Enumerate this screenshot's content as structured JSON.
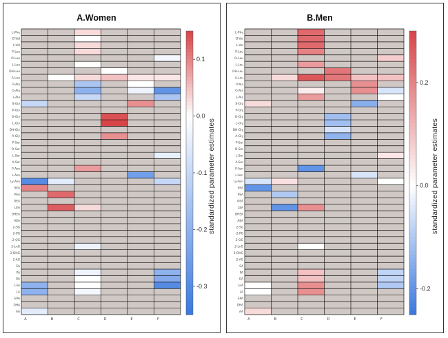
{
  "chart_data": [
    {
      "type": "heatmap",
      "title": "A.Women",
      "colorbar_label": "standardized parameter estimates",
      "color_range": [
        -0.35,
        0.15
      ],
      "colorbar_ticks": [
        {
          "value": 0.1,
          "label": "0.1"
        },
        {
          "value": 0.0,
          "label": "0.0"
        },
        {
          "value": -0.1,
          "label": "-0.1"
        },
        {
          "value": -0.2,
          "label": "-0.2"
        },
        {
          "value": -0.3,
          "label": "-0.3"
        }
      ],
      "colors": {
        "neg": "#3a78e0",
        "mid": "#ffffff",
        "pos": "#d84448",
        "empty": "#d0c8c4"
      },
      "columns": [
        "A",
        "B",
        "C",
        "D",
        "E",
        "F"
      ],
      "rows": [
        "L-Phe",
        "D-Val",
        "L-Val",
        "P-Leu",
        "O-Leu",
        "L-Leu",
        "DH-Leu",
        "A-Leu",
        "P-Ala",
        "O-Ala",
        "L-Ala",
        "S-Gly",
        "P-Gly",
        "O-Gly",
        "L-Gly",
        "DH-Gly",
        "A-Gly",
        "P-Ser",
        "O-Ser",
        "L-Ser",
        "A-Ser",
        "P-Asn",
        "L-Asn",
        "Ly-Asn",
        "SEA",
        "PEA",
        "OEA",
        "LEA",
        "DHEA",
        "AEA",
        "2-SG",
        "2-PG",
        "2-OG",
        "2-LnG",
        "2-DHG",
        "2-AG",
        "SA",
        "PA",
        "OA",
        "LnA",
        "LA",
        "EPA",
        "DHA",
        "AA"
      ],
      "values": [
        [
          null,
          null,
          0.03,
          null,
          null,
          null
        ],
        [
          null,
          null,
          0.0,
          null,
          null,
          null
        ],
        [
          null,
          null,
          0.03,
          null,
          null,
          null
        ],
        [
          null,
          null,
          0.03,
          null,
          null,
          null
        ],
        [
          null,
          null,
          null,
          null,
          null,
          -0.02
        ],
        [
          null,
          null,
          0.0,
          null,
          null,
          null
        ],
        [
          null,
          null,
          null,
          0.0,
          null,
          null
        ],
        [
          null,
          0.0,
          0.03,
          0.05,
          0.02,
          0.02
        ],
        [
          null,
          null,
          -0.15,
          null,
          0.0,
          null
        ],
        [
          null,
          null,
          -0.2,
          null,
          -0.03,
          -0.28
        ],
        [
          null,
          null,
          -0.1,
          null,
          null,
          -0.15
        ],
        [
          -0.1,
          null,
          null,
          null,
          0.09,
          null
        ],
        [
          null,
          null,
          null,
          null,
          null,
          null
        ],
        [
          null,
          null,
          null,
          0.14,
          null,
          null
        ],
        [
          null,
          null,
          null,
          0.15,
          null,
          null
        ],
        [
          null,
          null,
          null,
          null,
          null,
          null
        ],
        [
          null,
          null,
          null,
          0.09,
          null,
          null
        ],
        [
          null,
          null,
          null,
          null,
          null,
          null
        ],
        [
          null,
          null,
          null,
          null,
          null,
          null
        ],
        [
          null,
          null,
          null,
          null,
          null,
          -0.04
        ],
        [
          null,
          null,
          null,
          null,
          null,
          null
        ],
        [
          null,
          null,
          0.08,
          null,
          null,
          null
        ],
        [
          null,
          null,
          null,
          null,
          -0.25,
          null
        ],
        [
          -0.3,
          -0.05,
          null,
          null,
          null,
          -0.1
        ],
        [
          0.1,
          null,
          null,
          null,
          null,
          null
        ],
        [
          null,
          0.12,
          null,
          null,
          null,
          null
        ],
        [
          null,
          null,
          null,
          null,
          null,
          null
        ],
        [
          null,
          0.13,
          0.03,
          null,
          null,
          null
        ],
        [
          null,
          null,
          null,
          null,
          null,
          null
        ],
        [
          null,
          null,
          null,
          null,
          null,
          null
        ],
        [
          null,
          null,
          null,
          null,
          null,
          null
        ],
        [
          null,
          null,
          null,
          null,
          null,
          null
        ],
        [
          null,
          null,
          null,
          null,
          null,
          null
        ],
        [
          null,
          null,
          -0.03,
          null,
          null,
          null
        ],
        [
          null,
          null,
          null,
          null,
          null,
          null
        ],
        [
          null,
          null,
          null,
          null,
          null,
          null
        ],
        [
          null,
          null,
          null,
          null,
          null,
          null
        ],
        [
          null,
          null,
          -0.03,
          null,
          null,
          -0.2
        ],
        [
          null,
          null,
          0.0,
          null,
          null,
          -0.22
        ],
        [
          -0.2,
          null,
          0.0,
          null,
          null,
          -0.3
        ],
        [
          -0.2,
          null,
          -0.02,
          null,
          null,
          null
        ],
        [
          null,
          null,
          null,
          null,
          null,
          null
        ],
        [
          null,
          null,
          null,
          null,
          null,
          null
        ],
        [
          -0.05,
          null,
          null,
          null,
          null,
          null
        ]
      ]
    },
    {
      "type": "heatmap",
      "title": "B.Men",
      "colorbar_label": "standardized parameter estimates",
      "color_range": [
        -0.25,
        0.3
      ],
      "colorbar_ticks": [
        {
          "value": 0.2,
          "label": "0.2"
        },
        {
          "value": 0.0,
          "label": "0.0"
        },
        {
          "value": -0.2,
          "label": "-0.2"
        }
      ],
      "colors": {
        "neg": "#3a78e0",
        "mid": "#ffffff",
        "pos": "#d84448",
        "empty": "#d0c8c4"
      },
      "columns": [
        "A",
        "B",
        "C",
        "D",
        "E",
        "F"
      ],
      "rows": [
        "L-Phe",
        "D-Val",
        "L-Val",
        "P-Leu",
        "O-Leu",
        "L-Leu",
        "DH-Leu",
        "A-Leu",
        "P-Ala",
        "O-Ala",
        "L-Ala",
        "S-Gly",
        "P-Gly",
        "O-Gly",
        "L-Gly",
        "DH-Gly",
        "A-Gly",
        "P-Ser",
        "O-Ser",
        "L-Ser",
        "A-Ser",
        "P-Asn",
        "L-Asn",
        "Ly-Asn",
        "SEA",
        "PEA",
        "OEA",
        "LEA",
        "DHEA",
        "AEA",
        "2-SG",
        "2-PG",
        "2-OG",
        "2-LnG",
        "2-DHG",
        "2-AG",
        "SA",
        "PA",
        "OA",
        "LnA",
        "LA",
        "EPA",
        "DHA",
        "AA"
      ],
      "values": [
        [
          null,
          null,
          0.24,
          null,
          null,
          null
        ],
        [
          null,
          null,
          0.24,
          null,
          null,
          null
        ],
        [
          null,
          null,
          0.24,
          null,
          null,
          null
        ],
        [
          null,
          null,
          0.2,
          null,
          null,
          null
        ],
        [
          null,
          null,
          null,
          null,
          null,
          0.08
        ],
        [
          null,
          null,
          0.16,
          null,
          null,
          null
        ],
        [
          null,
          null,
          null,
          0.22,
          null,
          null
        ],
        [
          null,
          0.06,
          0.27,
          0.22,
          0.1,
          0.1
        ],
        [
          null,
          null,
          null,
          null,
          0.18,
          null
        ],
        [
          null,
          null,
          0.03,
          null,
          0.18,
          -0.05
        ],
        [
          null,
          null,
          0.16,
          null,
          null,
          0.0
        ],
        [
          0.06,
          null,
          null,
          null,
          -0.15,
          null
        ],
        [
          null,
          null,
          null,
          null,
          null,
          null
        ],
        [
          null,
          null,
          null,
          -0.12,
          null,
          null
        ],
        [
          null,
          null,
          null,
          -0.12,
          null,
          null
        ],
        [
          null,
          null,
          null,
          -0.05,
          null,
          null
        ],
        [
          null,
          null,
          null,
          -0.14,
          null,
          null
        ],
        [
          null,
          null,
          null,
          null,
          null,
          null
        ],
        [
          null,
          null,
          null,
          null,
          null,
          null
        ],
        [
          null,
          null,
          null,
          null,
          null,
          0.04
        ],
        [
          null,
          null,
          null,
          null,
          null,
          null
        ],
        [
          null,
          null,
          -0.2,
          null,
          null,
          null
        ],
        [
          null,
          null,
          null,
          null,
          -0.05,
          null
        ],
        [
          -0.05,
          0.05,
          null,
          null,
          null,
          0.0
        ],
        [
          -0.2,
          null,
          null,
          null,
          null,
          null
        ],
        [
          null,
          -0.1,
          null,
          null,
          null,
          null
        ],
        [
          null,
          null,
          null,
          null,
          null,
          null
        ],
        [
          null,
          -0.2,
          0.18,
          null,
          null,
          null
        ],
        [
          null,
          null,
          null,
          null,
          null,
          null
        ],
        [
          null,
          null,
          null,
          null,
          null,
          null
        ],
        [
          null,
          null,
          null,
          null,
          null,
          null
        ],
        [
          null,
          null,
          null,
          null,
          null,
          null
        ],
        [
          null,
          null,
          null,
          null,
          null,
          null
        ],
        [
          null,
          null,
          0.0,
          null,
          null,
          null
        ],
        [
          null,
          null,
          null,
          null,
          null,
          null
        ],
        [
          null,
          null,
          null,
          null,
          null,
          null
        ],
        [
          null,
          null,
          null,
          null,
          null,
          null
        ],
        [
          null,
          null,
          0.1,
          null,
          null,
          -0.08
        ],
        [
          null,
          null,
          0.1,
          null,
          null,
          -0.08
        ],
        [
          0.0,
          null,
          0.18,
          null,
          null,
          -0.1
        ],
        [
          0.0,
          null,
          0.18,
          null,
          null,
          null
        ],
        [
          null,
          null,
          null,
          null,
          null,
          null
        ],
        [
          null,
          null,
          null,
          null,
          null,
          null
        ],
        [
          0.06,
          null,
          null,
          null,
          null,
          null
        ]
      ]
    }
  ]
}
